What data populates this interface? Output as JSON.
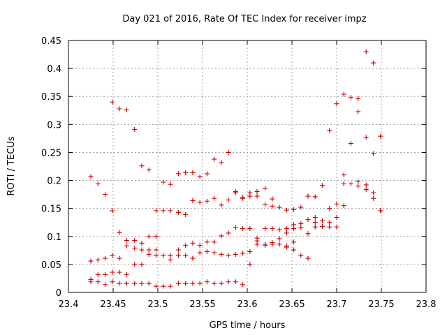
{
  "chart_data": {
    "type": "scatter",
    "title": "Day 021 of 2016, Rate Of TEC Index for receiver impz",
    "xlabel": "GPS time / hours",
    "ylabel": "ROTI / TECUs",
    "xlim": [
      23.4,
      23.8
    ],
    "ylim": [
      0,
      0.45
    ],
    "xticks": [
      23.4,
      23.45,
      23.5,
      23.55,
      23.6,
      23.65,
      23.7,
      23.75,
      23.8
    ],
    "xtick_labels": [
      "23.4",
      "23.45",
      "23.5",
      "23.55",
      "23.6",
      "23.65",
      "23.7",
      "23.75",
      "23.8"
    ],
    "yticks": [
      0,
      0.05,
      0.1,
      0.15,
      0.2,
      0.25,
      0.3,
      0.35,
      0.4,
      0.45
    ],
    "ytick_labels": [
      "0",
      "0.05",
      "0.1",
      "0.15",
      "0.2",
      "0.25",
      "0.3",
      "0.35",
      "0.4",
      "0.45"
    ],
    "grid": true,
    "marker": "+",
    "color": "#cc0000",
    "series": [
      {
        "name": "ROTI",
        "points": [
          [
            23.425,
            0.207
          ],
          [
            23.425,
            0.056
          ],
          [
            23.425,
            0.023
          ],
          [
            23.425,
            0.019
          ],
          [
            23.433,
            0.194
          ],
          [
            23.433,
            0.058
          ],
          [
            23.433,
            0.032
          ],
          [
            23.433,
            0.019
          ],
          [
            23.441,
            0.175
          ],
          [
            23.441,
            0.061
          ],
          [
            23.441,
            0.032
          ],
          [
            23.441,
            0.014
          ],
          [
            23.449,
            0.34
          ],
          [
            23.449,
            0.146
          ],
          [
            23.449,
            0.066
          ],
          [
            23.449,
            0.036
          ],
          [
            23.449,
            0.019
          ],
          [
            23.457,
            0.328
          ],
          [
            23.457,
            0.107
          ],
          [
            23.457,
            0.061
          ],
          [
            23.457,
            0.036
          ],
          [
            23.457,
            0.016
          ],
          [
            23.465,
            0.326
          ],
          [
            23.465,
            0.093
          ],
          [
            23.465,
            0.083
          ],
          [
            23.465,
            0.032
          ],
          [
            23.465,
            0.016
          ],
          [
            23.474,
            0.291
          ],
          [
            23.474,
            0.093
          ],
          [
            23.474,
            0.079
          ],
          [
            23.474,
            0.05
          ],
          [
            23.474,
            0.016
          ],
          [
            23.482,
            0.226
          ],
          [
            23.482,
            0.088
          ],
          [
            23.482,
            0.076
          ],
          [
            23.482,
            0.05
          ],
          [
            23.482,
            0.016
          ],
          [
            23.49,
            0.219
          ],
          [
            23.49,
            0.1
          ],
          [
            23.49,
            0.076
          ],
          [
            23.49,
            0.068
          ],
          [
            23.49,
            0.016
          ],
          [
            23.498,
            0.146
          ],
          [
            23.498,
            0.1
          ],
          [
            23.498,
            0.076
          ],
          [
            23.498,
            0.066
          ],
          [
            23.498,
            0.011
          ],
          [
            23.506,
            0.197
          ],
          [
            23.506,
            0.146
          ],
          [
            23.506,
            0.066
          ],
          [
            23.506,
            0.011
          ],
          [
            23.514,
            0.193
          ],
          [
            23.514,
            0.146
          ],
          [
            23.514,
            0.066
          ],
          [
            23.514,
            0.058
          ],
          [
            23.514,
            0.011
          ],
          [
            23.523,
            0.212
          ],
          [
            23.523,
            0.143
          ],
          [
            23.523,
            0.076
          ],
          [
            23.523,
            0.066
          ],
          [
            23.523,
            0.016
          ],
          [
            23.531,
            0.214
          ],
          [
            23.531,
            0.139
          ],
          [
            23.531,
            0.084
          ],
          [
            23.531,
            0.066
          ],
          [
            23.531,
            0.016
          ],
          [
            23.539,
            0.214
          ],
          [
            23.539,
            0.164
          ],
          [
            23.539,
            0.088
          ],
          [
            23.539,
            0.061
          ],
          [
            23.539,
            0.016
          ],
          [
            23.547,
            0.207
          ],
          [
            23.547,
            0.161
          ],
          [
            23.547,
            0.084
          ],
          [
            23.547,
            0.071
          ],
          [
            23.547,
            0.016
          ],
          [
            23.555,
            0.212
          ],
          [
            23.555,
            0.163
          ],
          [
            23.555,
            0.09
          ],
          [
            23.555,
            0.073
          ],
          [
            23.555,
            0.019
          ],
          [
            23.563,
            0.238
          ],
          [
            23.563,
            0.168
          ],
          [
            23.563,
            0.09
          ],
          [
            23.563,
            0.071
          ],
          [
            23.563,
            0.016
          ],
          [
            23.571,
            0.232
          ],
          [
            23.571,
            0.156
          ],
          [
            23.571,
            0.101
          ],
          [
            23.571,
            0.068
          ],
          [
            23.571,
            0.016
          ],
          [
            23.579,
            0.25
          ],
          [
            23.579,
            0.165
          ],
          [
            23.579,
            0.106
          ],
          [
            23.579,
            0.066
          ],
          [
            23.579,
            0.019
          ],
          [
            23.587,
            0.18
          ],
          [
            23.587,
            0.178
          ],
          [
            23.587,
            0.116
          ],
          [
            23.587,
            0.068
          ],
          [
            23.587,
            0.019
          ],
          [
            23.595,
            0.17
          ],
          [
            23.595,
            0.168
          ],
          [
            23.595,
            0.114
          ],
          [
            23.595,
            0.07
          ],
          [
            23.595,
            0.014
          ],
          [
            23.603,
            0.178
          ],
          [
            23.603,
            0.172
          ],
          [
            23.603,
            0.114
          ],
          [
            23.603,
            0.073
          ],
          [
            23.603,
            0.05
          ],
          [
            23.611,
            0.18
          ],
          [
            23.611,
            0.172
          ],
          [
            23.611,
            0.097
          ],
          [
            23.611,
            0.092
          ],
          [
            23.611,
            0.086
          ],
          [
            23.62,
            0.186
          ],
          [
            23.62,
            0.157
          ],
          [
            23.62,
            0.114
          ],
          [
            23.62,
            0.086
          ],
          [
            23.62,
            0.084
          ],
          [
            23.628,
            0.167
          ],
          [
            23.628,
            0.154
          ],
          [
            23.628,
            0.114
          ],
          [
            23.628,
            0.089
          ],
          [
            23.628,
            0.086
          ],
          [
            23.636,
            0.152
          ],
          [
            23.636,
            0.112
          ],
          [
            23.636,
            0.096
          ],
          [
            23.636,
            0.086
          ],
          [
            23.644,
            0.147
          ],
          [
            23.644,
            0.114
          ],
          [
            23.644,
            0.106
          ],
          [
            23.644,
            0.083
          ],
          [
            23.644,
            0.081
          ],
          [
            23.652,
            0.148
          ],
          [
            23.652,
            0.121
          ],
          [
            23.652,
            0.114
          ],
          [
            23.652,
            0.09
          ],
          [
            23.652,
            0.076
          ],
          [
            23.66,
            0.152
          ],
          [
            23.66,
            0.123
          ],
          [
            23.66,
            0.116
          ],
          [
            23.66,
            0.066
          ],
          [
            23.668,
            0.172
          ],
          [
            23.668,
            0.13
          ],
          [
            23.668,
            0.105
          ],
          [
            23.668,
            0.061
          ],
          [
            23.676,
            0.171
          ],
          [
            23.676,
            0.134
          ],
          [
            23.676,
            0.125
          ],
          [
            23.676,
            0.117
          ],
          [
            23.684,
            0.191
          ],
          [
            23.684,
            0.128
          ],
          [
            23.684,
            0.118
          ],
          [
            23.692,
            0.289
          ],
          [
            23.692,
            0.15
          ],
          [
            23.692,
            0.125
          ],
          [
            23.692,
            0.117
          ],
          [
            23.7,
            0.337
          ],
          [
            23.7,
            0.158
          ],
          [
            23.7,
            0.134
          ],
          [
            23.7,
            0.117
          ],
          [
            23.708,
            0.354
          ],
          [
            23.708,
            0.21
          ],
          [
            23.708,
            0.194
          ],
          [
            23.708,
            0.155
          ],
          [
            23.716,
            0.348
          ],
          [
            23.716,
            0.266
          ],
          [
            23.716,
            0.194
          ],
          [
            23.724,
            0.346
          ],
          [
            23.724,
            0.323
          ],
          [
            23.724,
            0.198
          ],
          [
            23.724,
            0.19
          ],
          [
            23.733,
            0.43
          ],
          [
            23.733,
            0.277
          ],
          [
            23.733,
            0.192
          ],
          [
            23.733,
            0.184
          ],
          [
            23.741,
            0.41
          ],
          [
            23.741,
            0.248
          ],
          [
            23.741,
            0.178
          ],
          [
            23.741,
            0.168
          ],
          [
            23.749,
            0.279
          ],
          [
            23.749,
            0.146
          ],
          [
            23.749,
            0.146
          ]
        ]
      }
    ]
  }
}
